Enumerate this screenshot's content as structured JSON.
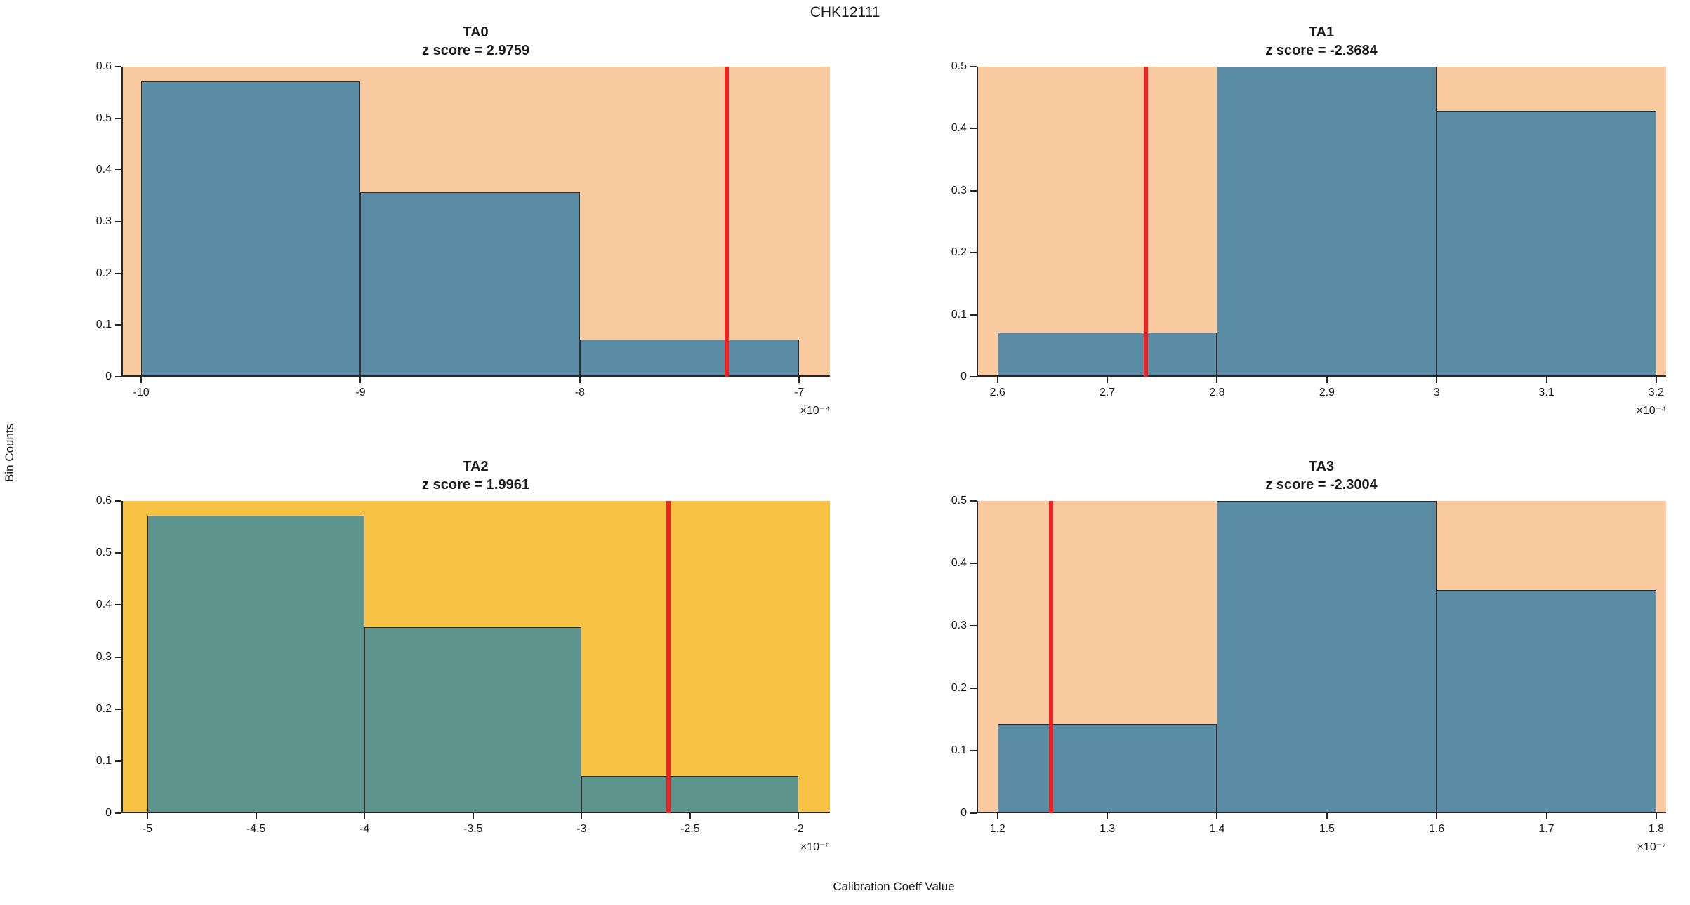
{
  "figure": {
    "title": "CHK12111",
    "ylabel": "Bin Counts",
    "xlabel": "Calibration Coeff Value"
  },
  "colors": {
    "background_light_orange": "#f9c9a0",
    "background_yellow": "#f8c244",
    "bar_blue": "#5b8ca6",
    "bar_teal": "#5e948e",
    "bar_edge": "#2e2e2e",
    "marker_red": "#ee2222",
    "axis": "#262626"
  },
  "chart_data": [
    {
      "type": "bar",
      "title": "TA0",
      "subtitle": "z score = 2.9759",
      "z_score": 2.9759,
      "bin_edges": [
        -10,
        -9,
        -8,
        -7
      ],
      "values": [
        0.5714,
        0.3571,
        0.0714
      ],
      "marker_x": -7.33,
      "xlim": [
        -10.09,
        -6.86
      ],
      "ylim": [
        0,
        0.6
      ],
      "xticks": [
        -10,
        -9,
        -8,
        -7
      ],
      "xtick_labels": [
        "-10",
        "-9",
        "-8",
        "-7"
      ],
      "yticks": [
        0,
        0.1,
        0.2,
        0.3,
        0.4,
        0.5,
        0.6
      ],
      "ytick_labels": [
        "0",
        "0.1",
        "0.2",
        "0.3",
        "0.4",
        "0.5",
        "0.6"
      ],
      "exponent_label": "×10⁻⁴",
      "bg_color": "#f9c9a0",
      "bar_color": "#5b8ca6",
      "bar_edge_color": "#2e2e2e",
      "marker_color": "#ee2222",
      "legend": "none",
      "grid": false
    },
    {
      "type": "bar",
      "title": "TA1",
      "subtitle": "z score = -2.3684",
      "z_score": -2.3684,
      "bin_edges": [
        2.6,
        2.8,
        3.0,
        3.2
      ],
      "values": [
        0.0714,
        0.5,
        0.4286
      ],
      "marker_x": 2.735,
      "xlim": [
        2.581,
        3.209
      ],
      "ylim": [
        0,
        0.5
      ],
      "xticks": [
        2.6,
        2.7,
        2.8,
        2.9,
        3.0,
        3.1,
        3.2
      ],
      "xtick_labels": [
        "2.6",
        "2.7",
        "2.8",
        "2.9",
        "3",
        "3.1",
        "3.2"
      ],
      "yticks": [
        0,
        0.1,
        0.2,
        0.3,
        0.4,
        0.5
      ],
      "ytick_labels": [
        "0",
        "0.1",
        "0.2",
        "0.3",
        "0.4",
        "0.5"
      ],
      "exponent_label": "×10⁻⁴",
      "bg_color": "#f9c9a0",
      "bar_color": "#5b8ca6",
      "bar_edge_color": "#2e2e2e",
      "marker_color": "#ee2222",
      "legend": "none",
      "grid": false
    },
    {
      "type": "bar",
      "title": "TA2",
      "subtitle": "z score = 1.9961",
      "z_score": 1.9961,
      "bin_edges": [
        -5,
        -4,
        -3,
        -2
      ],
      "values": [
        0.5714,
        0.3571,
        0.0714
      ],
      "marker_x": -2.6,
      "xlim": [
        -5.12,
        -1.856
      ],
      "ylim": [
        0,
        0.6
      ],
      "xticks": [
        -5,
        -4.5,
        -4,
        -3.5,
        -3,
        -2.5,
        -2
      ],
      "xtick_labels": [
        "-5",
        "-4.5",
        "-4",
        "-3.5",
        "-3",
        "-2.5",
        "-2"
      ],
      "yticks": [
        0,
        0.1,
        0.2,
        0.3,
        0.4,
        0.5,
        0.6
      ],
      "ytick_labels": [
        "0",
        "0.1",
        "0.2",
        "0.3",
        "0.4",
        "0.5",
        "0.6"
      ],
      "exponent_label": "×10⁻⁶",
      "bg_color": "#f8c244",
      "bar_color": "#5e948e",
      "bar_edge_color": "#2e2e2e",
      "marker_color": "#ee2222",
      "legend": "none",
      "grid": false
    },
    {
      "type": "bar",
      "title": "TA3",
      "subtitle": "z score = -2.3004",
      "z_score": -2.3004,
      "bin_edges": [
        1.2,
        1.4,
        1.6,
        1.8
      ],
      "values": [
        0.1429,
        0.5,
        0.3571
      ],
      "marker_x": 1.249,
      "xlim": [
        1.181,
        1.809
      ],
      "ylim": [
        0,
        0.5
      ],
      "xticks": [
        1.2,
        1.3,
        1.4,
        1.5,
        1.6,
        1.7,
        1.8
      ],
      "xtick_labels": [
        "1.2",
        "1.3",
        "1.4",
        "1.5",
        "1.6",
        "1.7",
        "1.8"
      ],
      "yticks": [
        0,
        0.1,
        0.2,
        0.3,
        0.4,
        0.5
      ],
      "ytick_labels": [
        "0",
        "0.1",
        "0.2",
        "0.3",
        "0.4",
        "0.5"
      ],
      "exponent_label": "×10⁻⁷",
      "bg_color": "#f9c9a0",
      "bar_color": "#5b8ca6",
      "bar_edge_color": "#2e2e2e",
      "marker_color": "#ee2222",
      "legend": "none",
      "grid": false
    }
  ]
}
